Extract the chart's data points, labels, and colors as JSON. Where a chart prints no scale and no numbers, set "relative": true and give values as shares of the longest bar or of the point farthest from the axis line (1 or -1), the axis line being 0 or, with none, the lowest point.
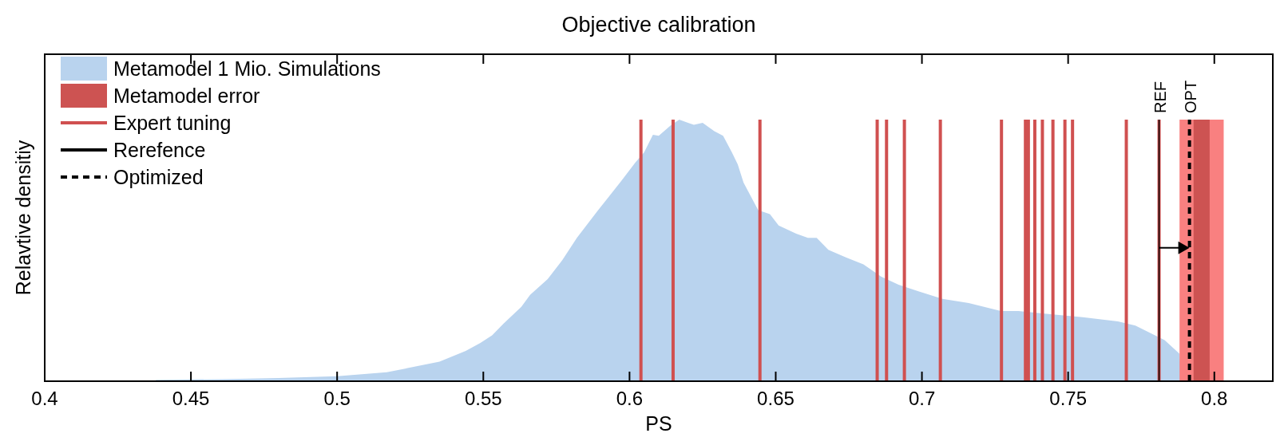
{
  "chart_data": {
    "type": "area",
    "title": "Objective calibration",
    "xlabel": "PS",
    "ylabel": "Relavtive densitiy",
    "relative": true,
    "xlim": [
      0.4,
      0.82
    ],
    "xticks": [
      0.4,
      0.45,
      0.5,
      0.55,
      0.6,
      0.65,
      0.7,
      0.75,
      0.8
    ],
    "legend": "top left",
    "series": [
      {
        "name": "Metamodel 1 Mio. Simulations",
        "color": "#b9d3ee",
        "x": [
          0.438,
          0.46,
          0.48,
          0.5,
          0.517,
          0.535,
          0.544,
          0.549,
          0.553,
          0.557,
          0.563,
          0.566,
          0.572,
          0.577,
          0.582,
          0.589,
          0.597,
          0.602,
          0.605,
          0.608,
          0.61,
          0.614,
          0.617,
          0.62,
          0.622,
          0.625,
          0.629,
          0.632,
          0.635,
          0.637,
          0.639,
          0.644,
          0.648,
          0.651,
          0.657,
          0.661,
          0.664,
          0.668,
          0.674,
          0.68,
          0.686,
          0.692,
          0.699,
          0.707,
          0.716,
          0.727,
          0.733,
          0.744,
          0.755,
          0.767,
          0.773,
          0.783,
          0.788,
          0.789
        ],
        "values": [
          0.005,
          0.008,
          0.012,
          0.019,
          0.034,
          0.075,
          0.116,
          0.146,
          0.175,
          0.221,
          0.284,
          0.33,
          0.39,
          0.463,
          0.548,
          0.65,
          0.763,
          0.836,
          0.875,
          0.942,
          0.938,
          0.977,
          1,
          0.988,
          0.98,
          0.988,
          0.956,
          0.938,
          0.875,
          0.829,
          0.759,
          0.654,
          0.639,
          0.595,
          0.564,
          0.548,
          0.548,
          0.502,
          0.473,
          0.447,
          0.4,
          0.369,
          0.343,
          0.315,
          0.299,
          0.268,
          0.268,
          0.256,
          0.245,
          0.229,
          0.213,
          0.157,
          0.106,
          0
        ]
      },
      {
        "type": "area",
        "color": "#f98080",
        "x": [
          0.7881,
          0.8032
        ],
        "values": [
          1,
          1
        ]
      },
      {
        "name": "Metamodel error",
        "type": "area",
        "color": "#cd5352",
        "x": [
          0.7929,
          0.7984
        ],
        "values": [
          1,
          1
        ]
      },
      {
        "name": "Expert tuning",
        "type": "bar",
        "color": "#d05050",
        "x": [
          0.6039,
          0.6149,
          0.6446,
          0.6847,
          0.6879,
          0.694,
          0.7063,
          0.7272,
          0.7354,
          0.7364,
          0.7386,
          0.7412,
          0.7448,
          0.7489,
          0.7515,
          0.7699,
          0.7811
        ],
        "values": [
          1,
          1,
          1,
          1,
          1,
          1,
          1,
          1,
          1,
          1,
          1,
          1,
          1,
          1,
          1,
          1,
          1
        ]
      },
      {
        "name": "Rerefence",
        "type": "line",
        "color": "#000000",
        "line_style": "solid",
        "x": [
          0.7811,
          0.7811
        ],
        "values": [
          0,
          1
        ]
      },
      {
        "name": "Optimized",
        "type": "line",
        "color": "#000000",
        "line_style": "dashed",
        "x": [
          0.7915,
          0.7915
        ],
        "values": [
          0,
          1
        ]
      }
    ],
    "annotations": [
      "REF",
      "OPT"
    ]
  }
}
